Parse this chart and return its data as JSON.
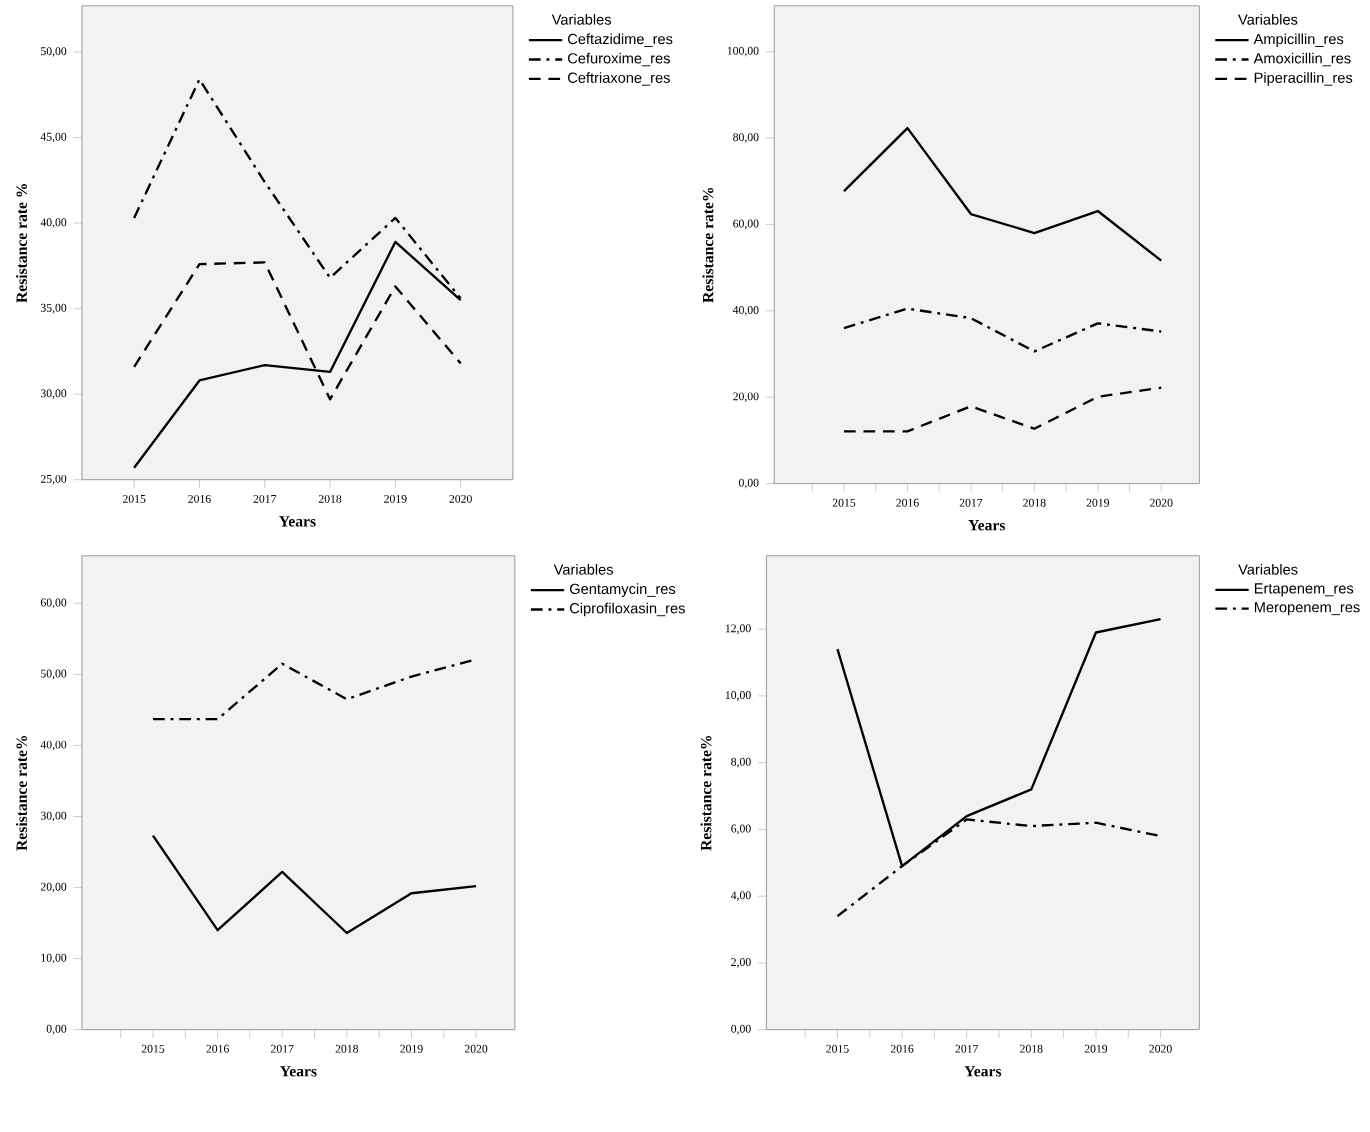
{
  "chart_data": [
    {
      "type": "line",
      "xlabel": "Years",
      "ylabel": "Resistance rate %",
      "legend_title": "Variables",
      "legend": "top right",
      "grid": false,
      "x": [
        2015,
        2016,
        2017,
        2018,
        2019,
        2020
      ],
      "xlim": [
        2014.2,
        2020.8
      ],
      "xticks": [
        2015,
        2016,
        2017,
        2018,
        2019,
        2020
      ],
      "ylim": [
        25,
        52.7
      ],
      "yticks": [
        {
          "value": 25,
          "label": "25,00"
        },
        {
          "value": 30,
          "label": "30,00"
        },
        {
          "value": 35,
          "label": "35,00"
        },
        {
          "value": 40,
          "label": "40,00"
        },
        {
          "value": 45,
          "label": "45,00"
        },
        {
          "value": 50,
          "label": "50,00"
        }
      ],
      "series": [
        {
          "name": "Ceftazidime_res",
          "color": "#000000",
          "line_style": "solid",
          "values": [
            25.7,
            30.8,
            31.7,
            31.3,
            38.9,
            35.5
          ]
        },
        {
          "name": "Cefuroxime_res",
          "color": "#000000",
          "line_style": "dashdot",
          "values": [
            40.3,
            48.4,
            42.4,
            36.8,
            40.3,
            35.6
          ]
        },
        {
          "name": "Ceftriaxone_res",
          "color": "#000000",
          "line_style": "dashed",
          "values": [
            31.6,
            37.6,
            37.7,
            29.7,
            36.3,
            31.8
          ]
        }
      ]
    },
    {
      "type": "line",
      "xlabel": "Years",
      "ylabel": "Resistance rate%",
      "legend_title": "Variables",
      "legend": "top right",
      "grid": false,
      "x": [
        2015,
        2016,
        2017,
        2018,
        2019,
        2020
      ],
      "xlim": [
        2013.9,
        2020.6
      ],
      "xticks": [
        {
          "value": 2014.5,
          "label": null
        },
        2015,
        {
          "value": 2015.5,
          "label": null
        },
        2016,
        {
          "value": 2016.5,
          "label": null
        },
        2017,
        {
          "value": 2017.5,
          "label": null
        },
        2018,
        {
          "value": 2018.5,
          "label": null
        },
        2019,
        {
          "value": 2019.5,
          "label": null
        },
        2020
      ],
      "ylim": [
        0,
        110.6
      ],
      "yticks": [
        {
          "value": 0,
          "label": "0,00"
        },
        {
          "value": 20,
          "label": "20,00"
        },
        {
          "value": 40,
          "label": "40,00"
        },
        {
          "value": 60,
          "label": "60,00"
        },
        {
          "value": 80,
          "label": "80,00"
        },
        {
          "value": 100,
          "label": "100,00"
        }
      ],
      "series": [
        {
          "name": "Ampicillin_res",
          "color": "#000000",
          "line_style": "solid",
          "values": [
            67.7,
            82.3,
            62.4,
            58.0,
            63.1,
            51.6
          ]
        },
        {
          "name": "Amoxicillin_res",
          "color": "#000000",
          "line_style": "dashdot",
          "values": [
            36.0,
            40.5,
            38.3,
            30.6,
            37.1,
            35.2
          ]
        },
        {
          "name": "Piperacillin_res",
          "color": "#000000",
          "line_style": "dashed",
          "values": [
            12.1,
            12.1,
            17.9,
            12.7,
            20.1,
            22.2
          ]
        }
      ]
    },
    {
      "type": "line",
      "xlabel": "Years",
      "ylabel": "Resistance rate%",
      "legend_title": "Variables",
      "legend": "top right",
      "grid": false,
      "x": [
        2015,
        2016,
        2017,
        2018,
        2019,
        2020
      ],
      "xlim": [
        2013.9,
        2020.6
      ],
      "xticks": [
        {
          "value": 2014.5,
          "label": null
        },
        2015,
        {
          "value": 2015.5,
          "label": null
        },
        2016,
        {
          "value": 2016.5,
          "label": null
        },
        2017,
        {
          "value": 2017.5,
          "label": null
        },
        2018,
        {
          "value": 2018.5,
          "label": null
        },
        2019,
        {
          "value": 2019.5,
          "label": null
        },
        2020
      ],
      "ylim": [
        0,
        66.7
      ],
      "yticks": [
        {
          "value": 0,
          "label": "0,00"
        },
        {
          "value": 10,
          "label": "10,00"
        },
        {
          "value": 20,
          "label": "20,00"
        },
        {
          "value": 30,
          "label": "30,00"
        },
        {
          "value": 40,
          "label": "40,00"
        },
        {
          "value": 50,
          "label": "50,00"
        },
        {
          "value": 60,
          "label": "60,00"
        }
      ],
      "series": [
        {
          "name": "Gentamycin_res",
          "color": "#000000",
          "line_style": "solid",
          "values": [
            27.3,
            14.0,
            22.2,
            13.6,
            19.2,
            20.2
          ]
        },
        {
          "name": "Ciprofiloxasin_res",
          "color": "#000000",
          "line_style": "dashdot",
          "values": [
            43.7,
            43.7,
            51.5,
            46.5,
            49.7,
            52.1
          ]
        }
      ]
    },
    {
      "type": "line",
      "xlabel": "Years",
      "ylabel": "Resistance rate%",
      "legend_title": "Variables",
      "legend": "top right",
      "grid": false,
      "x": [
        2015,
        2016,
        2017,
        2018,
        2019,
        2020
      ],
      "xlim": [
        2013.9,
        2020.6
      ],
      "xticks": [
        {
          "value": 2014.5,
          "label": null
        },
        2015,
        {
          "value": 2015.5,
          "label": null
        },
        2016,
        {
          "value": 2016.5,
          "label": null
        },
        2017,
        {
          "value": 2017.5,
          "label": null
        },
        2018,
        {
          "value": 2018.5,
          "label": null
        },
        2019,
        {
          "value": 2019.5,
          "label": null
        },
        2020
      ],
      "ylim": [
        0,
        14.2
      ],
      "yticks": [
        {
          "value": 0,
          "label": "0,00"
        },
        {
          "value": 2,
          "label": "2,00"
        },
        {
          "value": 4,
          "label": "4,00"
        },
        {
          "value": 6,
          "label": "6,00"
        },
        {
          "value": 8,
          "label": "8,00"
        },
        {
          "value": 10,
          "label": "10,00"
        },
        {
          "value": 12,
          "label": "12,00"
        }
      ],
      "series": [
        {
          "name": "Ertapenem_res",
          "color": "#000000",
          "line_style": "solid",
          "values": [
            11.4,
            4.9,
            6.4,
            7.2,
            11.9,
            12.3
          ]
        },
        {
          "name": "Meropenem_res",
          "color": "#000000",
          "line_style": "dashdot",
          "values": [
            3.4,
            4.9,
            6.3,
            6.1,
            6.2,
            5.8
          ]
        }
      ]
    }
  ]
}
